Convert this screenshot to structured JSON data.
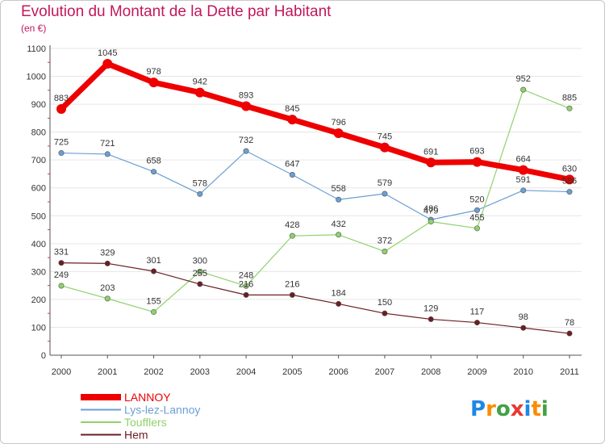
{
  "title": "Evolution du Montant de la Dette par Habitant",
  "subtitle": "(en €)",
  "logo_text": "Proxiti",
  "colors": {
    "title": "#c2185b",
    "grid": "#e6e6e6",
    "axis": "#555555",
    "tick_minor": "#e03070"
  },
  "chart_data": {
    "type": "line",
    "x": [
      "2000",
      "2001",
      "2002",
      "2003",
      "2004",
      "2005",
      "2006",
      "2007",
      "2008",
      "2009",
      "2010",
      "2011"
    ],
    "ylim": [
      0,
      1100
    ],
    "yticks": [
      0,
      100,
      200,
      300,
      400,
      500,
      600,
      700,
      800,
      900,
      1000,
      1100
    ],
    "grid": true,
    "legend_position": "bottom-left",
    "series": [
      {
        "name": "LANNOY",
        "color": "#ee0000",
        "width": 7,
        "marker": 6,
        "values": [
          883,
          1045,
          978,
          942,
          893,
          845,
          796,
          745,
          691,
          693,
          664,
          630
        ]
      },
      {
        "name": "Lys-lez-Lannoy",
        "color": "#6a9fd4",
        "width": 1.2,
        "marker": 3.2,
        "values": [
          725,
          721,
          658,
          578,
          732,
          647,
          558,
          579,
          486,
          520,
          591,
          586
        ]
      },
      {
        "name": "Toufflers",
        "color": "#8fd16b",
        "width": 1.2,
        "marker": 3.2,
        "values": [
          249,
          203,
          155,
          300,
          248,
          428,
          432,
          372,
          479,
          455,
          952,
          885
        ]
      },
      {
        "name": "Hem",
        "color": "#6b1e22",
        "width": 1.2,
        "marker": 3.2,
        "values": [
          331,
          329,
          301,
          255,
          216,
          216,
          184,
          150,
          129,
          117,
          98,
          78
        ]
      }
    ]
  }
}
